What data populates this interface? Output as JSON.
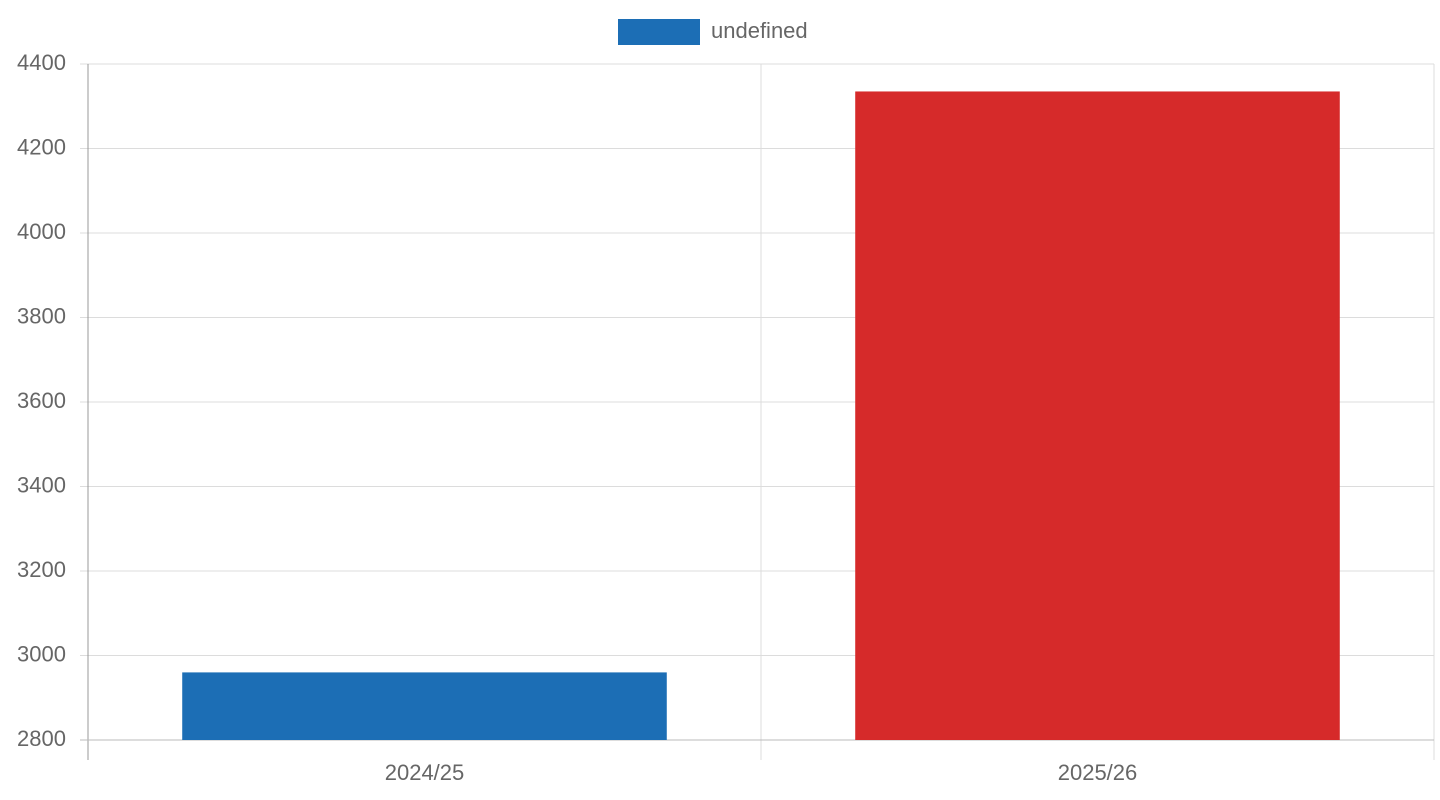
{
  "chart_data": {
    "type": "bar",
    "categories": [
      "2024/25",
      "2025/26"
    ],
    "series": [
      {
        "name": "undefined",
        "colors": [
          "#1c6eb5",
          "#d62a2a"
        ],
        "values": [
          2960,
          4335
        ]
      }
    ],
    "ylim": [
      2800,
      4400
    ],
    "yticks": [
      2800,
      3000,
      3200,
      3400,
      3600,
      3800,
      4000,
      4200,
      4400
    ],
    "grid": true,
    "legend": "top"
  }
}
